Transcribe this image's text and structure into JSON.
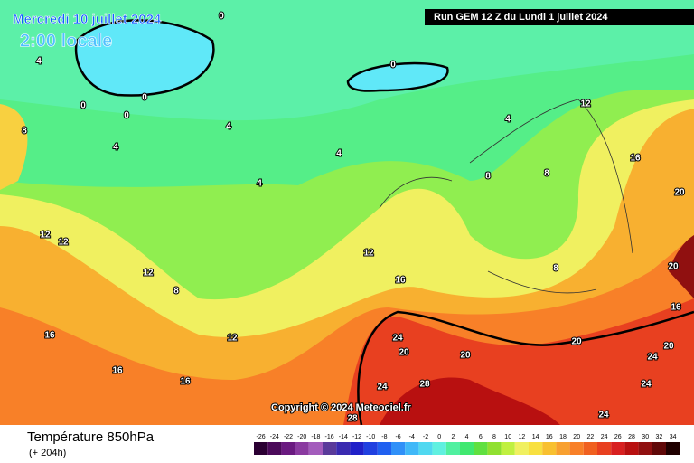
{
  "header": {
    "date": "Mercredi 10 juillet 2024",
    "time": "2:00 locale",
    "run": "Run GEM 12 Z du Lundi 1 juillet 2024"
  },
  "copyright": "Copyright © 2024 Meteociel.fr",
  "footer": {
    "title": "Température 850hPa",
    "lead": "(+ 204h)"
  },
  "contour_labels": [
    0,
    0,
    0,
    0,
    0,
    4,
    4,
    4,
    4,
    4,
    4,
    8,
    8,
    8,
    8,
    8,
    12,
    12,
    12,
    12,
    12,
    12,
    16,
    16,
    16,
    16,
    16,
    16,
    20,
    20,
    20,
    20,
    20,
    24,
    24,
    24,
    24,
    28,
    28,
    20,
    24
  ],
  "colorbar": {
    "labels": [
      -26,
      -24,
      -22,
      -20,
      -18,
      -16,
      -14,
      -12,
      -10,
      -8,
      -6,
      -4,
      -2,
      0,
      2,
      4,
      6,
      8,
      10,
      12,
      14,
      16,
      18,
      20,
      22,
      24,
      26,
      28,
      30,
      32,
      34
    ],
    "colors": [
      "#2b0033",
      "#4b0a5a",
      "#6a1a80",
      "#8a3aa0",
      "#a35cbc",
      "#5a3a9a",
      "#3a2ab0",
      "#2020c8",
      "#2040e0",
      "#2060f0",
      "#3090f8",
      "#40b8f8",
      "#50d8f0",
      "#60f0e0",
      "#50f0a0",
      "#40e870",
      "#60e040",
      "#90e030",
      "#c0f040",
      "#f0f060",
      "#f8e040",
      "#f8c030",
      "#f8a030",
      "#f88028",
      "#f06020",
      "#e84020",
      "#d82020",
      "#b81010",
      "#901010",
      "#600808",
      "#200000"
    ]
  }
}
